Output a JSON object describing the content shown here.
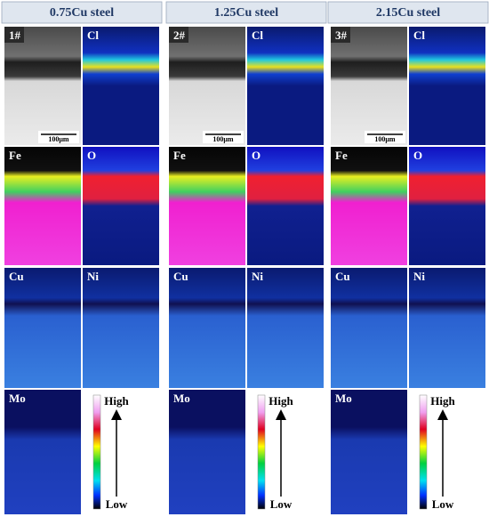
{
  "columns": [
    {
      "title": "0.75Cu steel",
      "labels": [
        "1#",
        "Cl",
        "Fe",
        "O",
        "Cu",
        "Ni",
        "Mo"
      ],
      "scale_bar": "100μm"
    },
    {
      "title": "1.25Cu steel",
      "labels": [
        "2#",
        "Cl",
        "Fe",
        "O",
        "Cu",
        "Ni",
        "Mo"
      ],
      "scale_bar": "100μm"
    },
    {
      "title": "2.15Cu steel",
      "labels": [
        "3#",
        "Cl",
        "Fe",
        "O",
        "Cu",
        "Ni",
        "Mo"
      ],
      "scale_bar": "100μm"
    }
  ],
  "legend": {
    "high": "High",
    "low": "Low"
  }
}
